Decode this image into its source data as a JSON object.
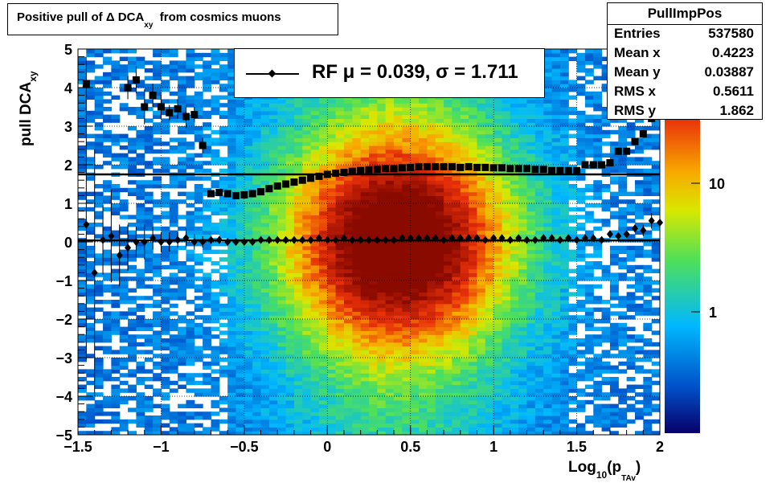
{
  "title": {
    "main": "Positive pull of Δ DCA",
    "sub": "xy",
    "tail": "from cosmics muons"
  },
  "stats": {
    "name": "PullImpPos",
    "rows": [
      {
        "label": "Entries",
        "value": "537580"
      },
      {
        "label": "Mean x",
        "value": "0.4223"
      },
      {
        "label": "Mean y",
        "value": "0.03887"
      },
      {
        "label": "RMS x",
        "value": "0.5611"
      },
      {
        "label": "RMS y",
        "value": "1.862"
      }
    ]
  },
  "legend": {
    "label": "RF μ =  0.039, σ =   1.711"
  },
  "axis_titles": {
    "y_main": "pull DCA",
    "y_sub": "xy",
    "x_main": "Log",
    "x_sub": "10",
    "x_paren": "(p",
    "x_sub2": "TAv",
    "x_close": ")"
  },
  "chart_data": {
    "type": "heatmap",
    "x_axis": {
      "range": [
        -1.5,
        2
      ],
      "ticks": [
        -1.5,
        -1,
        -0.5,
        0,
        0.5,
        1,
        1.5,
        2
      ],
      "tick_labels": [
        "−1.5",
        "−1",
        "−0.5",
        "0",
        "0.5",
        "1",
        "1.5",
        "2"
      ]
    },
    "y_axis": {
      "range": [
        -5,
        5
      ],
      "ticks": [
        -5,
        -4,
        -3,
        -2,
        -1,
        0,
        1,
        2,
        3,
        4,
        5
      ],
      "tick_labels": [
        "−5",
        "−4",
        "−3",
        "−2",
        "−1",
        "0",
        "1",
        "2",
        "3",
        "4",
        "5"
      ]
    },
    "z_axis": {
      "log": true,
      "ticks": [
        1,
        10
      ],
      "tick_labels": [
        "1",
        "10"
      ]
    },
    "grid": true,
    "histogram": {
      "entries": 537580,
      "mean_x": 0.4223,
      "mean_y": 0.03887,
      "rms_x": 0.5611,
      "rms_y": 1.862
    },
    "series": [
      {
        "marker": "diamond",
        "x": [
          -1.45,
          -1.4,
          -1.35,
          -1.3,
          -1.25,
          -1.2,
          -1.15,
          -1.1,
          -1.05,
          -1.0,
          -0.95,
          -0.9,
          -0.85,
          -0.8,
          -0.75,
          -0.7,
          -0.65,
          -0.6,
          -0.55,
          -0.5,
          -0.45,
          -0.4,
          -0.35,
          -0.3,
          -0.25,
          -0.2,
          -0.15,
          -0.1,
          -0.05,
          0.0,
          0.05,
          0.1,
          0.15,
          0.2,
          0.25,
          0.3,
          0.35,
          0.4,
          0.45,
          0.5,
          0.55,
          0.6,
          0.65,
          0.7,
          0.75,
          0.8,
          0.85,
          0.9,
          0.95,
          1.0,
          1.05,
          1.1,
          1.15,
          1.2,
          1.25,
          1.3,
          1.35,
          1.4,
          1.45,
          1.5,
          1.55,
          1.6,
          1.65,
          1.7,
          1.75,
          1.8,
          1.85,
          1.9,
          1.95,
          2.0
        ],
        "y": [
          0.45,
          -0.8,
          0.05,
          0.15,
          -0.35,
          -0.15,
          0.0,
          0.0,
          0.1,
          0.0,
          0.0,
          0.05,
          0.1,
          0.0,
          0.0,
          0.05,
          0.05,
          0.0,
          0.0,
          0.0,
          0.0,
          0.05,
          0.05,
          0.05,
          0.05,
          0.05,
          0.05,
          0.05,
          0.1,
          0.05,
          0.05,
          0.1,
          0.05,
          0.05,
          0.05,
          0.05,
          0.05,
          0.05,
          0.1,
          0.1,
          0.1,
          0.1,
          0.1,
          0.05,
          0.1,
          0.1,
          0.1,
          0.1,
          0.05,
          0.1,
          0.1,
          0.05,
          0.1,
          0.05,
          0.05,
          0.1,
          0.1,
          0.05,
          0.1,
          0.05,
          0.1,
          0.1,
          0.05,
          0.2,
          0.15,
          0.2,
          0.35,
          0.3,
          0.55,
          0.5
        ],
        "yerr": [
          3.5,
          3.2,
          0.9,
          1.2,
          0.8,
          0.6,
          0.4,
          0.45,
          0.3,
          0.25,
          0.25,
          0.2,
          0.25,
          0.2,
          0.15,
          0.1,
          0.05,
          0.05,
          0.05,
          0.05,
          0.05,
          0.05,
          0.05,
          0.05,
          0.05,
          0.05,
          0.05,
          0.05,
          0.05,
          0.05,
          0.05,
          0.05,
          0.05,
          0.05,
          0.05,
          0.05,
          0.05,
          0.05,
          0.05,
          0.05,
          0.05,
          0.05,
          0.05,
          0.05,
          0.05,
          0.05,
          0.05,
          0.05,
          0.05,
          0.05,
          0.05,
          0.05,
          0.05,
          0.05,
          0.05,
          0.05,
          0.05,
          0.05,
          0.05,
          0.05,
          0.05,
          0.05,
          0.05,
          0.05,
          0.05,
          0.1,
          0.1,
          0.15,
          0.2,
          0.2
        ]
      },
      {
        "marker": "square",
        "x": [
          -1.45,
          -1.2,
          -1.15,
          -1.1,
          -1.05,
          -1.0,
          -0.95,
          -0.9,
          -0.85,
          -0.8,
          -0.75,
          -0.7,
          -0.65,
          -0.6,
          -0.55,
          -0.5,
          -0.45,
          -0.4,
          -0.35,
          -0.3,
          -0.25,
          -0.2,
          -0.15,
          -0.1,
          -0.05,
          0.0,
          0.05,
          0.1,
          0.15,
          0.2,
          0.25,
          0.3,
          0.35,
          0.4,
          0.45,
          0.5,
          0.55,
          0.6,
          0.65,
          0.7,
          0.75,
          0.8,
          0.85,
          0.9,
          0.95,
          1.0,
          1.05,
          1.1,
          1.15,
          1.2,
          1.25,
          1.3,
          1.35,
          1.4,
          1.45,
          1.5,
          1.55,
          1.6,
          1.65,
          1.7,
          1.75,
          1.8,
          1.85,
          1.9,
          1.95,
          2.0
        ],
        "y": [
          4.1,
          4.0,
          4.2,
          3.5,
          3.8,
          3.5,
          3.35,
          3.45,
          3.25,
          3.3,
          2.5,
          1.25,
          1.28,
          1.25,
          1.2,
          1.22,
          1.25,
          1.3,
          1.38,
          1.45,
          1.5,
          1.55,
          1.6,
          1.65,
          1.7,
          1.75,
          1.78,
          1.8,
          1.83,
          1.85,
          1.87,
          1.88,
          1.9,
          1.9,
          1.92,
          1.93,
          1.95,
          1.95,
          1.95,
          1.95,
          1.95,
          1.93,
          1.95,
          1.93,
          1.93,
          1.92,
          1.92,
          1.9,
          1.9,
          1.9,
          1.88,
          1.88,
          1.85,
          1.85,
          1.85,
          1.85,
          2.0,
          2.0,
          2.0,
          2.05,
          2.35,
          2.35,
          2.6,
          2.8,
          3.2,
          3.3
        ],
        "yerr": [
          0.6,
          0.3,
          0.35,
          0.45,
          0.3,
          0.3,
          0.2,
          0.25,
          0.3,
          0.2,
          0.2,
          0.03,
          0.03,
          0.03,
          0.03,
          0.03,
          0.03,
          0.03,
          0.03,
          0.03,
          0.03,
          0.03,
          0.03,
          0.03,
          0.03,
          0.03,
          0.03,
          0.03,
          0.03,
          0.03,
          0.03,
          0.03,
          0.03,
          0.03,
          0.03,
          0.03,
          0.03,
          0.03,
          0.03,
          0.03,
          0.03,
          0.03,
          0.03,
          0.03,
          0.03,
          0.03,
          0.03,
          0.03,
          0.03,
          0.03,
          0.03,
          0.03,
          0.03,
          0.03,
          0.03,
          0.03,
          0.03,
          0.03,
          0.03,
          0.05,
          0.05,
          0.05,
          0.08,
          0.1,
          0.1,
          0.15
        ]
      }
    ],
    "fit_lines": [
      {
        "y": 0.039
      },
      {
        "y": 1.75
      }
    ]
  },
  "colors": {
    "palette_low": "#08006a",
    "palette_mid_low": "#00b8ff",
    "palette_mid": "#4ee05a",
    "palette_mid_high": "#f8e000",
    "palette_high": "#e8300a",
    "palette_top": "#8b0a00",
    "marker": "#000000",
    "frame": "#000000",
    "grid": "#000000"
  }
}
